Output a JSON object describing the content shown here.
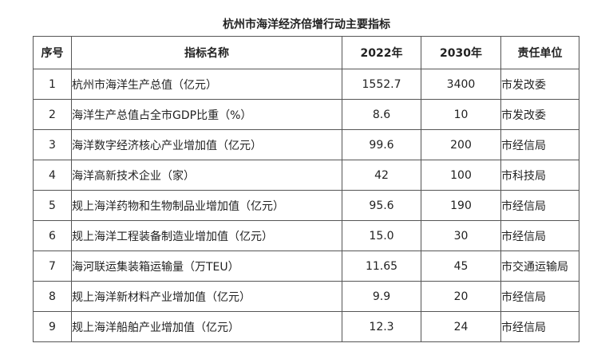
{
  "title": "杭州市海洋经济倍增行动主要指标",
  "table": {
    "headers": {
      "index": "序号",
      "name": "指标名称",
      "y2022": "2022年",
      "y2030": "2030年",
      "unit": "责任单位"
    },
    "rows": [
      {
        "index": "1",
        "name": "杭州市海洋生产总值（亿元）",
        "y2022": "1552.7",
        "y2030": "3400",
        "unit": "市发改委"
      },
      {
        "index": "2",
        "name": "海洋生产总值占全市GDP比重（%）",
        "y2022": "8.6",
        "y2030": "10",
        "unit": "市发改委"
      },
      {
        "index": "3",
        "name": "海洋数字经济核心产业增加值（亿元）",
        "y2022": "99.6",
        "y2030": "200",
        "unit": "市经信局"
      },
      {
        "index": "4",
        "name": "海洋高新技术企业（家）",
        "y2022": "42",
        "y2030": "100",
        "unit": "市科技局"
      },
      {
        "index": "5",
        "name": "规上海洋药物和生物制品业增加值（亿元）",
        "y2022": "95.6",
        "y2030": "190",
        "unit": "市经信局"
      },
      {
        "index": "6",
        "name": "规上海洋工程装备制造业增加值（亿元）",
        "y2022": "15.0",
        "y2030": "30",
        "unit": "市经信局"
      },
      {
        "index": "7",
        "name": "海河联运集装箱运输量（万TEU）",
        "y2022": "11.65",
        "y2030": "45",
        "unit": "市交通运输局"
      },
      {
        "index": "8",
        "name": "规上海洋新材料产业增加值（亿元）",
        "y2022": "9.9",
        "y2030": "20",
        "unit": "市经信局"
      },
      {
        "index": "9",
        "name": "规上海洋船舶产业增加值（亿元）",
        "y2022": "12.3",
        "y2030": "24",
        "unit": "市经信局"
      }
    ]
  }
}
